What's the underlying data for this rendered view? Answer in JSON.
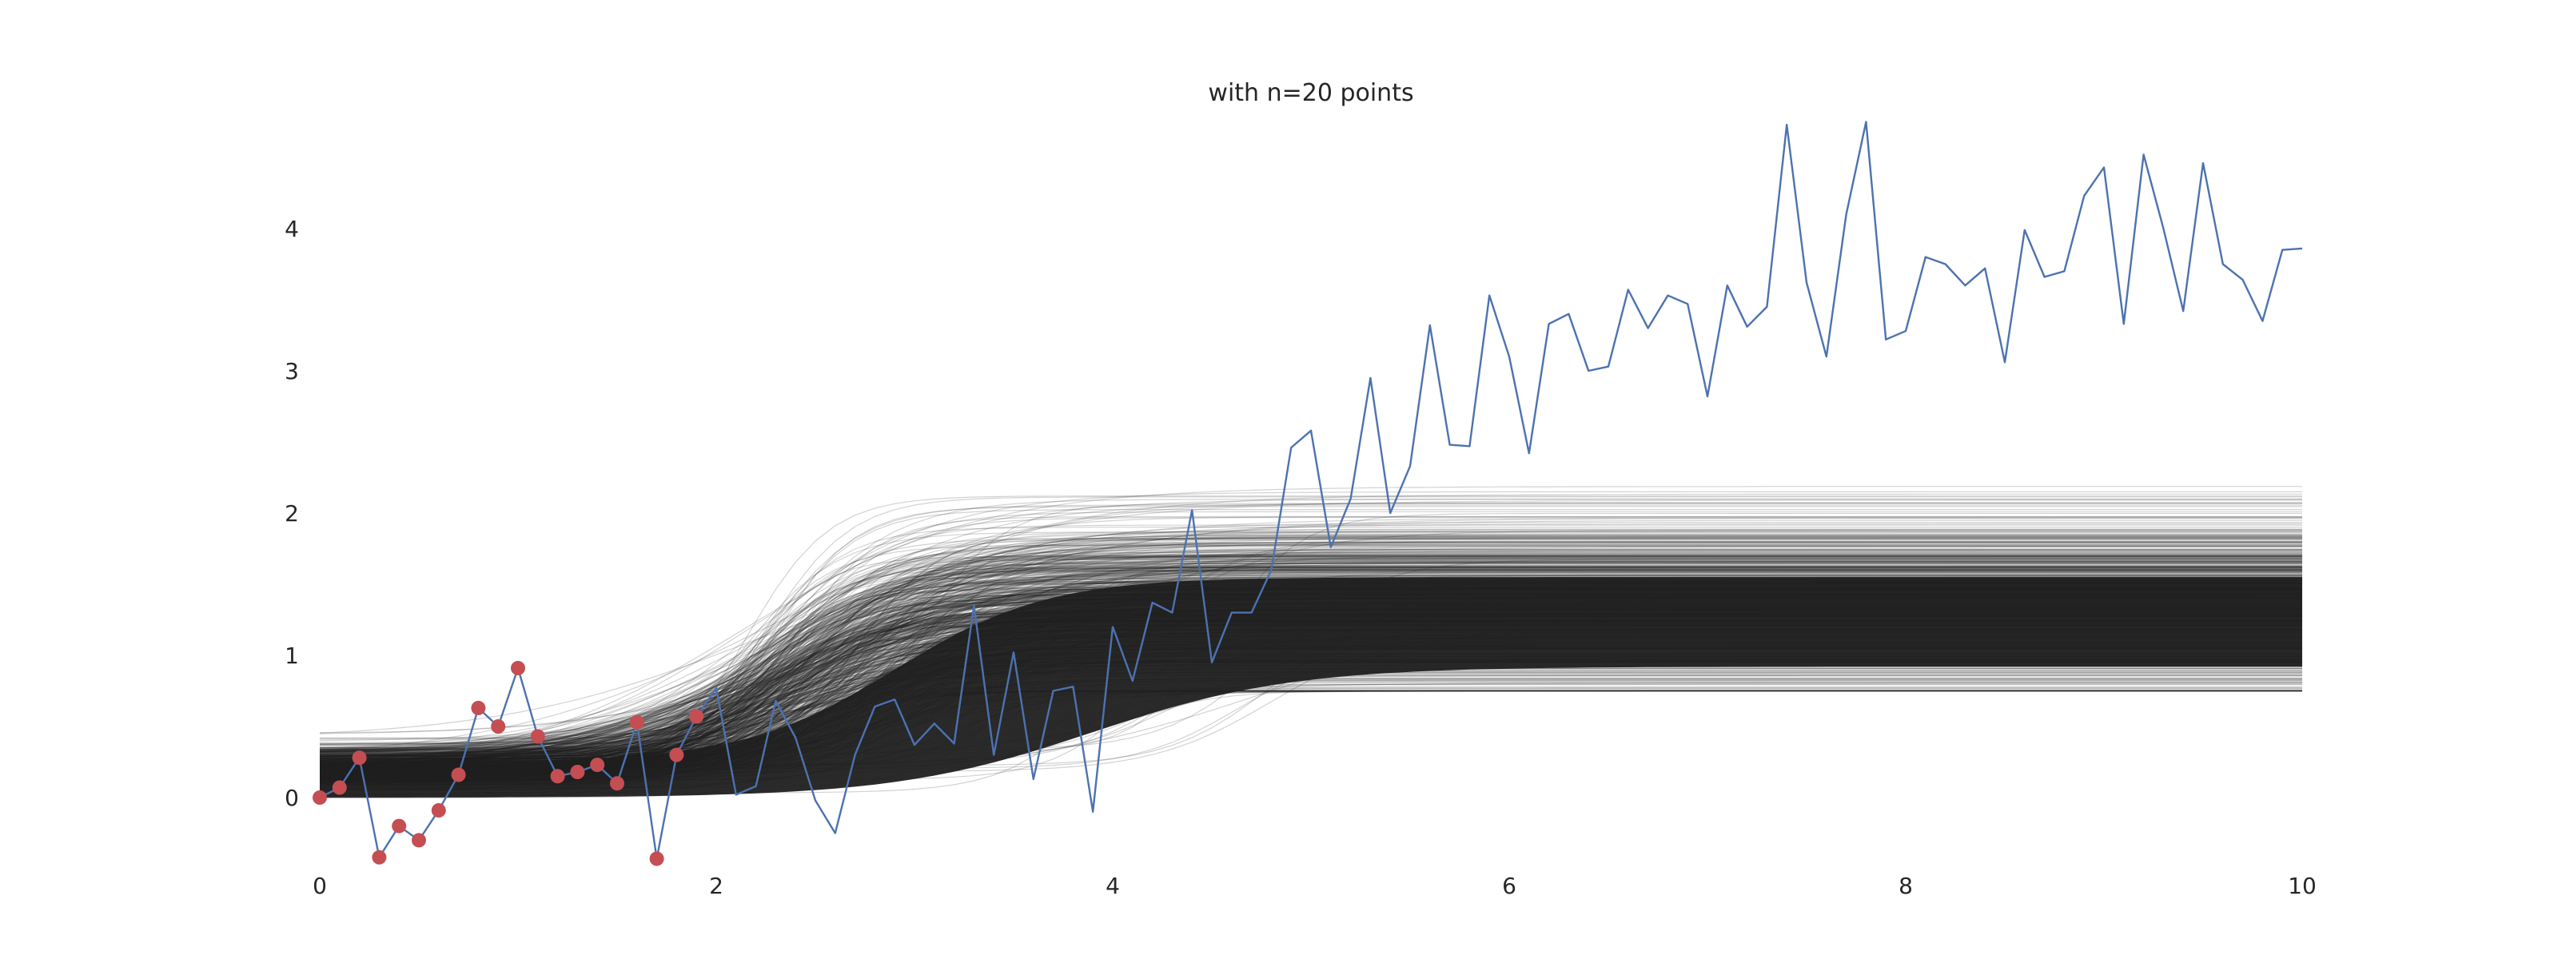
{
  "chart_data": {
    "type": "line",
    "title": "with n=20 points",
    "xlabel": "",
    "ylabel": "",
    "xlim": [
      0,
      10
    ],
    "ylim": [
      -0.45,
      5.0
    ],
    "x_ticks": [
      0,
      2,
      4,
      6,
      8,
      10
    ],
    "y_ticks": [
      0,
      1,
      2,
      3,
      4
    ],
    "grid": false,
    "legend": "none",
    "colors": {
      "observed_line": "#4c72b0",
      "sample_points": "#c44e52",
      "posterior_samples": "#1f1f1f",
      "text": "#262626",
      "background": "#ffffff"
    },
    "posterior_samples": {
      "description_values": "sigmoid-shaped posterior draws, start 0.0-0.45 at x=0, plateau 0.7-2.4 by x=10",
      "count_drawn": 700
    },
    "series": [
      {
        "x": [
          0.0,
          0.1,
          0.2,
          0.3,
          0.4,
          0.5,
          0.6,
          0.7,
          0.8,
          0.9,
          1.0,
          1.1,
          1.2,
          1.3,
          1.4,
          1.5,
          1.6,
          1.7,
          1.8,
          1.9,
          2.0,
          2.1,
          2.2,
          2.3,
          2.4,
          2.5,
          2.6,
          2.7,
          2.8,
          2.9,
          3.0,
          3.1,
          3.2,
          3.3,
          3.4,
          3.5,
          3.6,
          3.7,
          3.8,
          3.9,
          4.0,
          4.1,
          4.2,
          4.3,
          4.4,
          4.5,
          4.6,
          4.7,
          4.8,
          4.9,
          5.0,
          5.1,
          5.2,
          5.3,
          5.4,
          5.5,
          5.6,
          5.7,
          5.8,
          5.9,
          6.0,
          6.1,
          6.2,
          6.3,
          6.4,
          6.5,
          6.6,
          6.7,
          6.8,
          6.9,
          7.0,
          7.1,
          7.2,
          7.3,
          7.4,
          7.5,
          7.6,
          7.7,
          7.8,
          7.9,
          8.0,
          8.1,
          8.2,
          8.3,
          8.4,
          8.5,
          8.6,
          8.7,
          8.8,
          8.9,
          9.0,
          9.1,
          9.2,
          9.3,
          9.4,
          9.5,
          9.6,
          9.7,
          9.8,
          9.9,
          10.0
        ],
        "values": [
          0.0,
          0.07,
          0.28,
          -0.42,
          -0.2,
          -0.3,
          -0.09,
          0.16,
          0.63,
          0.5,
          0.91,
          0.43,
          0.15,
          0.18,
          0.23,
          0.1,
          0.53,
          -0.43,
          0.3,
          0.57,
          0.77,
          0.02,
          0.08,
          0.68,
          0.42,
          -0.02,
          -0.25,
          0.3,
          0.64,
          0.69,
          0.37,
          0.52,
          0.38,
          1.35,
          0.3,
          1.02,
          0.13,
          0.75,
          0.78,
          -0.1,
          1.2,
          0.82,
          1.37,
          1.3,
          2.02,
          0.95,
          1.3,
          1.3,
          1.6,
          2.46,
          2.58,
          1.76,
          2.1,
          2.95,
          2.0,
          2.33,
          3.32,
          2.48,
          2.47,
          3.53,
          3.1,
          2.42,
          3.33,
          3.4,
          3.0,
          3.03,
          3.57,
          3.3,
          3.53,
          3.47,
          2.82,
          3.6,
          3.31,
          3.45,
          4.73,
          3.62,
          3.1,
          4.1,
          4.75,
          3.22,
          3.28,
          3.8,
          3.75,
          3.6,
          3.72,
          3.06,
          3.99,
          3.66,
          3.7,
          4.23,
          4.43,
          3.33,
          4.52,
          4.0,
          3.42,
          4.46,
          3.75,
          3.64,
          3.35,
          3.85,
          3.86
        ]
      }
    ],
    "sample_points": {
      "x": [
        0.0,
        0.1,
        0.2,
        0.3,
        0.4,
        0.5,
        0.6,
        0.7,
        0.8,
        0.9,
        1.0,
        1.1,
        1.2,
        1.3,
        1.4,
        1.5,
        1.6,
        1.7,
        1.8,
        1.9
      ],
      "values": [
        0.0,
        0.07,
        0.28,
        -0.42,
        -0.2,
        -0.3,
        -0.09,
        0.16,
        0.63,
        0.5,
        0.91,
        0.43,
        0.15,
        0.18,
        0.23,
        0.1,
        0.53,
        -0.43,
        0.3,
        0.57
      ]
    }
  }
}
